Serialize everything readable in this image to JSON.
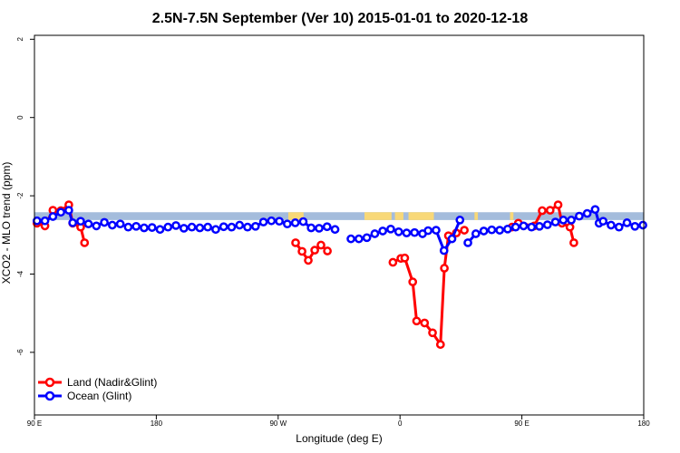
{
  "chart_data": {
    "type": "line",
    "title": "2.5N-7.5N September (Ver 10)   2015-01-01 to 2020-12-18",
    "xlabel": "Longitude (deg E)",
    "ylabel": "XCO2 - MLO trend (ppm)",
    "xlim": [
      90,
      450
    ],
    "ylim": [
      -7.6,
      2.1
    ],
    "x_ticks": [
      {
        "value": 90,
        "label": "90 E"
      },
      {
        "value": 162,
        "label": "180"
      },
      {
        "value": 234,
        "label": "90 W"
      },
      {
        "value": 306,
        "label": "0"
      },
      {
        "value": 378,
        "label": "90 E"
      },
      {
        "value": 450,
        "label": "180"
      }
    ],
    "y_ticks": [
      {
        "value": 2,
        "label": "2"
      },
      {
        "value": 0,
        "label": "0"
      },
      {
        "value": -2,
        "label": "-2"
      },
      {
        "value": -4,
        "label": "-4"
      },
      {
        "value": -6,
        "label": "-6"
      }
    ],
    "land_mask": {
      "y_top": -2.42,
      "y_bottom": -2.62,
      "ocean_color": "#a4bcdc",
      "land_color": "#f8d878",
      "land_ranges": [
        [
          240,
          249
        ],
        [
          285,
          301
        ],
        [
          303,
          308
        ],
        [
          311,
          326
        ],
        [
          350,
          352
        ],
        [
          371,
          373
        ]
      ]
    },
    "series": [
      {
        "name": "Land (Nadir&Glint)",
        "color": "#ff0000",
        "segments": [
          [
            [
              91.5,
              -2.7
            ],
            [
              96.2,
              -2.77
            ],
            [
              100.9,
              -2.37
            ],
            [
              105.6,
              -2.38
            ],
            [
              110.3,
              -2.23
            ],
            [
              112.6,
              -2.7
            ],
            [
              117.3,
              -2.8
            ],
            [
              119.6,
              -3.2
            ]
          ],
          [
            [
              244.3,
              -3.2
            ],
            [
              248.1,
              -3.42
            ],
            [
              251.8,
              -3.65
            ],
            [
              255.6,
              -3.39
            ],
            [
              259.3,
              -3.26
            ],
            [
              263.1,
              -3.41
            ]
          ],
          [
            [
              301.8,
              -3.7
            ],
            [
              306.5,
              -3.6
            ],
            [
              308.8,
              -3.59
            ],
            [
              313.5,
              -4.2
            ],
            [
              315.8,
              -5.2
            ],
            [
              320.5,
              -5.25
            ],
            [
              325.2,
              -5.5
            ],
            [
              329.9,
              -5.8
            ],
            [
              332.2,
              -3.85
            ],
            [
              334.6,
              -3.02
            ],
            [
              339.3,
              -2.95
            ],
            [
              344.0,
              -2.88
            ]
          ],
          [
            [
              372.2,
              -2.8
            ],
            [
              375.9,
              -2.7
            ],
            [
              385.3,
              -2.77
            ],
            [
              390.0,
              -2.38
            ],
            [
              394.7,
              -2.37
            ],
            [
              399.4,
              -2.23
            ],
            [
              401.7,
              -2.7
            ],
            [
              406.4,
              -2.8
            ],
            [
              408.7,
              -3.2
            ]
          ]
        ]
      },
      {
        "name": "Ocean (Glint)",
        "color": "#0000ff",
        "segments": [
          [
            [
              91.5,
              -2.64
            ],
            [
              96.2,
              -2.64
            ],
            [
              100.9,
              -2.53
            ],
            [
              105.6,
              -2.42
            ],
            [
              110.3,
              -2.37
            ],
            [
              112.6,
              -2.69
            ],
            [
              117.3,
              -2.65
            ],
            [
              121.9,
              -2.72
            ],
            [
              126.6,
              -2.77
            ],
            [
              131.3,
              -2.68
            ],
            [
              136.0,
              -2.75
            ],
            [
              140.7,
              -2.72
            ],
            [
              145.4,
              -2.8
            ],
            [
              150.1,
              -2.78
            ],
            [
              154.8,
              -2.82
            ],
            [
              159.5,
              -2.81
            ],
            [
              164.2,
              -2.86
            ],
            [
              168.9,
              -2.8
            ],
            [
              173.6,
              -2.76
            ],
            [
              178.3,
              -2.83
            ],
            [
              183.0,
              -2.8
            ],
            [
              187.7,
              -2.82
            ],
            [
              192.4,
              -2.8
            ],
            [
              197.1,
              -2.86
            ],
            [
              201.8,
              -2.79
            ],
            [
              206.5,
              -2.8
            ],
            [
              211.2,
              -2.75
            ],
            [
              215.9,
              -2.8
            ],
            [
              220.6,
              -2.78
            ],
            [
              225.3,
              -2.67
            ],
            [
              230.0,
              -2.64
            ],
            [
              234.7,
              -2.65
            ],
            [
              239.4,
              -2.72
            ],
            [
              244.1,
              -2.69
            ],
            [
              248.8,
              -2.66
            ],
            [
              253.5,
              -2.82
            ],
            [
              258.2,
              -2.83
            ],
            [
              262.9,
              -2.79
            ],
            [
              267.6,
              -2.86
            ]
          ],
          [
            [
              277.0,
              -3.1
            ],
            [
              281.7,
              -3.1
            ],
            [
              286.4,
              -3.07
            ],
            [
              291.1,
              -2.97
            ],
            [
              295.8,
              -2.9
            ],
            [
              300.5,
              -2.85
            ],
            [
              305.2,
              -2.92
            ],
            [
              309.9,
              -2.95
            ],
            [
              314.6,
              -2.94
            ],
            [
              319.3,
              -2.97
            ]
          ],
          [
            [
              322.6,
              -2.89
            ],
            [
              327.3,
              -2.88
            ],
            [
              332.0,
              -3.4
            ],
            [
              336.7,
              -3.1
            ],
            [
              341.4,
              -2.62
            ]
          ],
          [
            [
              346.1,
              -3.2
            ],
            [
              350.8,
              -2.97
            ],
            [
              355.5,
              -2.9
            ],
            [
              360.2,
              -2.87
            ],
            [
              364.9,
              -2.88
            ],
            [
              369.6,
              -2.85
            ],
            [
              374.3,
              -2.8
            ],
            [
              379.0,
              -2.77
            ],
            [
              383.7,
              -2.8
            ],
            [
              388.4,
              -2.78
            ],
            [
              393.1,
              -2.74
            ],
            [
              397.8,
              -2.67
            ],
            [
              402.5,
              -2.62
            ],
            [
              407.2,
              -2.62
            ],
            [
              411.9,
              -2.52
            ],
            [
              416.6,
              -2.45
            ],
            [
              421.3,
              -2.35
            ],
            [
              423.6,
              -2.7
            ],
            [
              426.0,
              -2.65
            ],
            [
              430.7,
              -2.75
            ],
            [
              435.4,
              -2.8
            ],
            [
              440.1,
              -2.69
            ],
            [
              444.8,
              -2.78
            ],
            [
              449.5,
              -2.75
            ]
          ]
        ]
      }
    ]
  }
}
